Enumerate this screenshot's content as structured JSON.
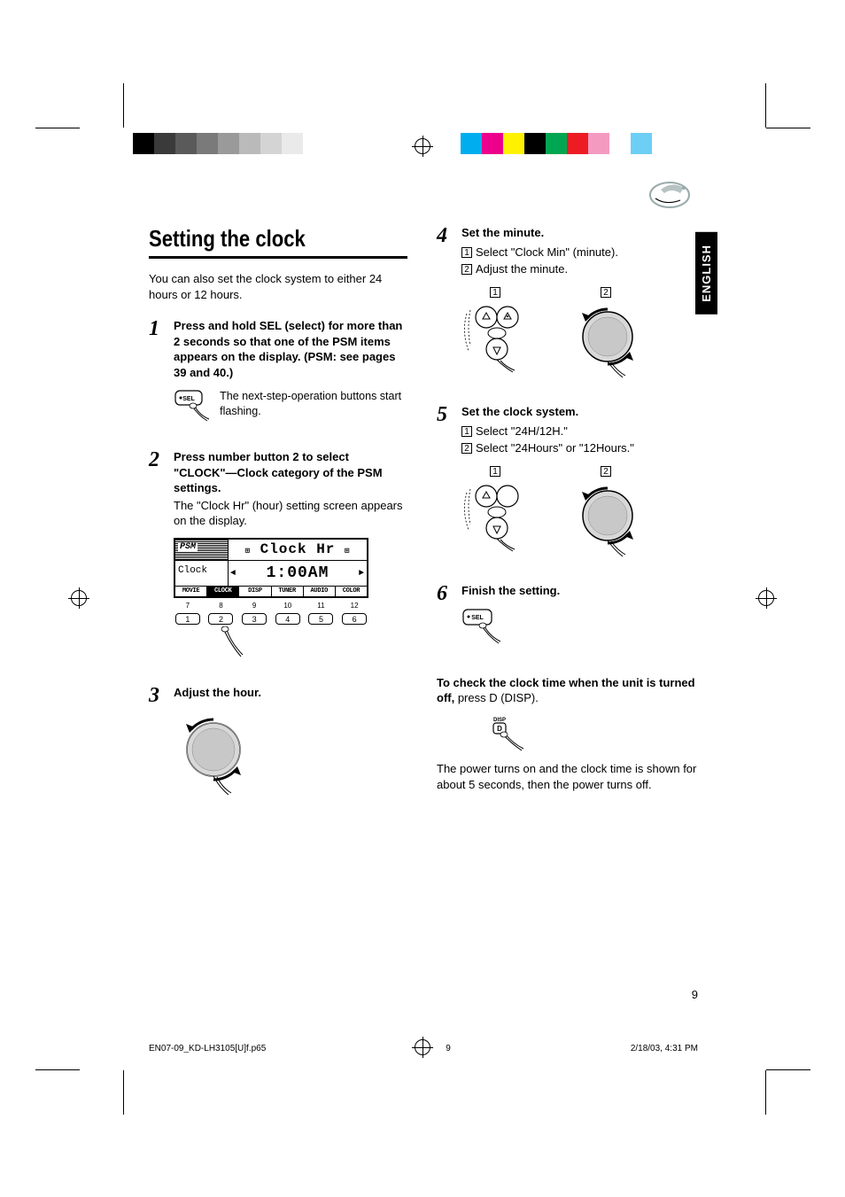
{
  "colorbar_left": [
    "#000000",
    "#3a3a3a",
    "#5a5a5a",
    "#7a7a7a",
    "#9a9a9a",
    "#bababa",
    "#d4d4d4",
    "#eaeaea",
    "#ffffff"
  ],
  "colorbar_right": [
    "#00aeef",
    "#ec008c",
    "#fff200",
    "#000000",
    "#00a651",
    "#ed1c24",
    "#f49ac1",
    "#ffffff",
    "#6dcff6"
  ],
  "lang_tab": "ENGLISH",
  "title": "Setting the clock",
  "intro": "You can also set the clock system to either 24 hours or 12 hours.",
  "steps": {
    "s1": {
      "num": "1",
      "head": "Press and hold SEL (select) for more than 2 seconds so that one of the PSM items appears on the display. (PSM: see pages 39 and 40.)",
      "note": "The next-step-operation buttons start flashing."
    },
    "s2": {
      "num": "2",
      "head": "Press number button 2 to select \"CLOCK\"—Clock category of the PSM settings.",
      "text": "The \"Clock Hr\" (hour) setting screen appears on the display."
    },
    "s3": {
      "num": "3",
      "head": "Adjust the hour."
    },
    "s4": {
      "num": "4",
      "head": "Set the minute.",
      "sub1": "Select \"Clock Min\" (minute).",
      "sub2": "Adjust the minute."
    },
    "s5": {
      "num": "5",
      "head": "Set the clock system.",
      "sub1": "Select \"24H/12H.\"",
      "sub2": "Select \"24Hours\" or \"12Hours.\""
    },
    "s6": {
      "num": "6",
      "head": "Finish the setting."
    }
  },
  "display": {
    "psm_label": "PSM",
    "main": "Clock Hr",
    "clock_label": "Clock",
    "time": "1:00AM",
    "tabs": [
      "MOVIE",
      "CLOCK",
      "DISP",
      "TUNER",
      "AUDIO",
      "COLOR"
    ],
    "active_tab_index": 1,
    "top_nums": [
      "7",
      "8",
      "9",
      "10",
      "11",
      "12"
    ],
    "bot_nums": [
      "1",
      "2",
      "3",
      "4",
      "5",
      "6"
    ]
  },
  "sel_button_label": "SEL",
  "disp_button_label": "D",
  "disp_button_top": "DISP",
  "note": {
    "head": "To check the clock time when the unit is turned off,",
    "tail": " press D (DISP).",
    "body": "The power turns on and the clock time is shown for about 5 seconds, then the power turns off."
  },
  "page_number": "9",
  "footer": {
    "file": "EN07-09_KD-LH3105[U]f.p65",
    "page": "9",
    "datetime": "2/18/03, 4:31 PM"
  },
  "boxed": {
    "one": "1",
    "two": "2"
  }
}
